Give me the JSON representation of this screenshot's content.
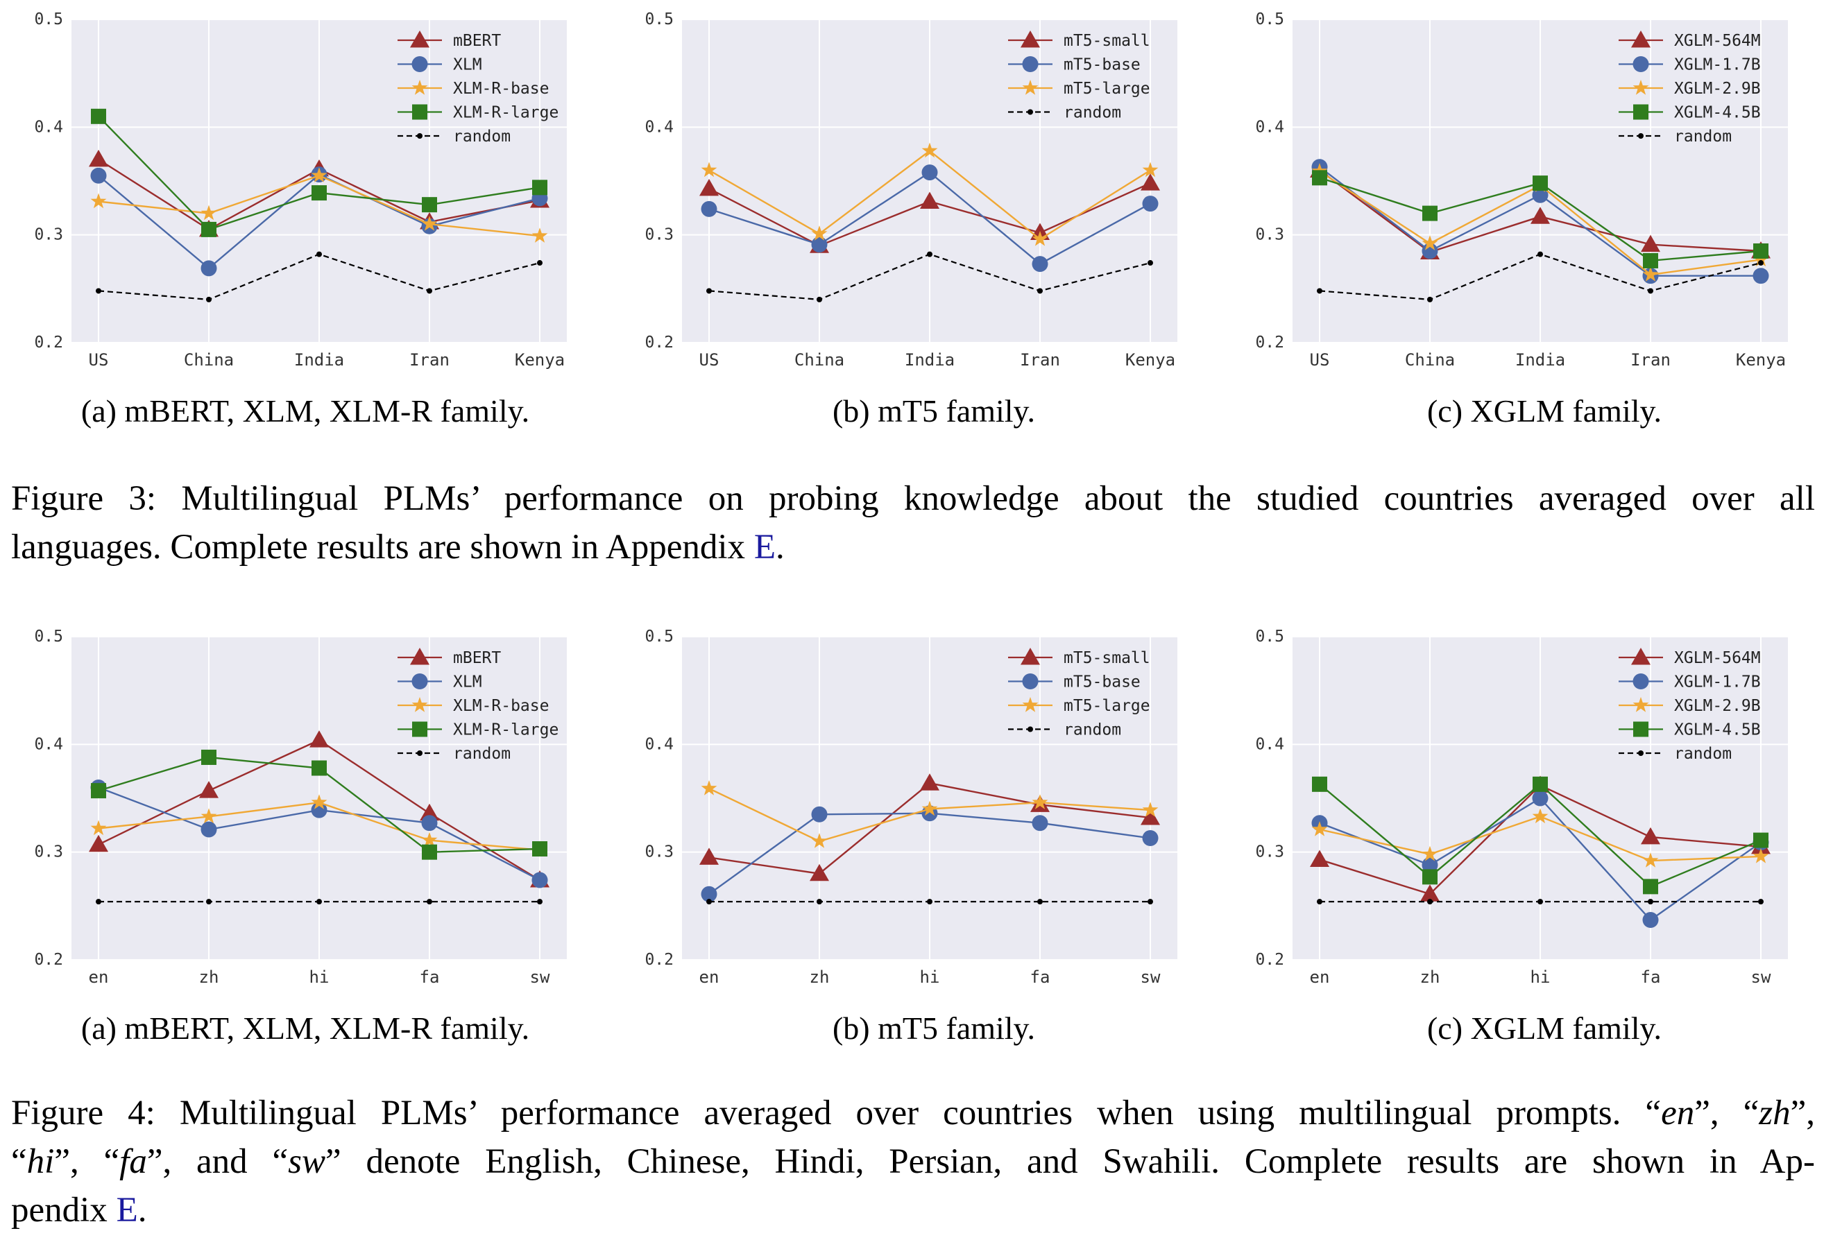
{
  "figure3": {
    "caption_parts": [
      "Figure 3: Multilingual PLMs’ performance on probing knowledge about the studied countries averaged over all",
      "languages. Complete results are shown in Appendix ",
      "E",
      "."
    ],
    "subcaptions": [
      "(a) mBERT, XLM, XLM-R family.",
      "(b) mT5 family.",
      "(c) XGLM family."
    ]
  },
  "figure4": {
    "caption_parts": [
      "Figure 4: Multilingual PLMs’ performance averaged over countries when using multilingual prompts. “",
      "en",
      "”, “",
      "zh",
      "”,",
      "“",
      "hi",
      "”, “",
      "fa",
      "”, and “",
      "sw",
      "” denote English, Chinese, Hindi, Persian, and Swahili.  Complete results are shown in Ap-",
      "pendix ",
      "E",
      "."
    ],
    "subcaptions": [
      "(a) mBERT, XLM, XLM-R family.",
      "(b) mT5 family.",
      "(c) XGLM family."
    ]
  },
  "style": {
    "panel_background": "#eaeaf2",
    "gridline": "#ffffff",
    "series_colors": [
      "#9b2d2d",
      "#4a69a8",
      "#f0a835",
      "#2f7d1e"
    ],
    "random_color": "#000000",
    "markers": [
      "triangle",
      "circle",
      "star",
      "square"
    ],
    "legend_position": "top-right"
  },
  "chart_data": [
    {
      "id": "fig3a",
      "type": "line",
      "categories": [
        "US",
        "China",
        "India",
        "Iran",
        "Kenya"
      ],
      "ylim": [
        0.2,
        0.5
      ],
      "yticks": [
        "0.2",
        "0.3",
        "0.4",
        "0.5"
      ],
      "grid": true,
      "series": [
        {
          "name": "mBERT",
          "values": [
            0.37,
            0.305,
            0.361,
            0.312,
            0.332
          ]
        },
        {
          "name": "XLM",
          "values": [
            0.355,
            0.269,
            0.356,
            0.308,
            0.334
          ]
        },
        {
          "name": "XLM-R-base",
          "values": [
            0.331,
            0.32,
            0.355,
            0.31,
            0.299
          ]
        },
        {
          "name": "XLM-R-large",
          "values": [
            0.41,
            0.305,
            0.339,
            0.328,
            0.344
          ]
        },
        {
          "name": "random",
          "values": [
            0.248,
            0.24,
            0.282,
            0.248,
            0.274
          ]
        }
      ]
    },
    {
      "id": "fig3b",
      "type": "line",
      "categories": [
        "US",
        "China",
        "India",
        "Iran",
        "Kenya"
      ],
      "ylim": [
        0.2,
        0.5
      ],
      "yticks": [
        "0.2",
        "0.3",
        "0.4",
        "0.5"
      ],
      "grid": true,
      "series": [
        {
          "name": "mT5-small",
          "values": [
            0.343,
            0.29,
            0.331,
            0.302,
            0.348
          ]
        },
        {
          "name": "mT5-base",
          "values": [
            0.324,
            0.291,
            0.358,
            0.273,
            0.329
          ]
        },
        {
          "name": "mT5-large",
          "values": [
            0.36,
            0.301,
            0.378,
            0.296,
            0.36
          ]
        },
        {
          "name": "random",
          "values": [
            0.248,
            0.24,
            0.282,
            0.248,
            0.274
          ]
        }
      ]
    },
    {
      "id": "fig3c",
      "type": "line",
      "categories": [
        "US",
        "China",
        "India",
        "Iran",
        "Kenya"
      ],
      "ylim": [
        0.2,
        0.5
      ],
      "yticks": [
        "0.2",
        "0.3",
        "0.4",
        "0.5"
      ],
      "grid": true,
      "series": [
        {
          "name": "XGLM-564M",
          "values": [
            0.36,
            0.284,
            0.317,
            0.291,
            0.285
          ]
        },
        {
          "name": "XGLM-1.7B",
          "values": [
            0.363,
            0.285,
            0.337,
            0.262,
            0.262
          ]
        },
        {
          "name": "XGLM-2.9B",
          "values": [
            0.359,
            0.292,
            0.346,
            0.263,
            0.277
          ]
        },
        {
          "name": "XGLM-4.5B",
          "values": [
            0.353,
            0.32,
            0.348,
            0.276,
            0.285
          ]
        },
        {
          "name": "random",
          "values": [
            0.248,
            0.24,
            0.282,
            0.248,
            0.274
          ]
        }
      ]
    },
    {
      "id": "fig4a",
      "type": "line",
      "categories": [
        "en",
        "zh",
        "hi",
        "fa",
        "sw"
      ],
      "ylim": [
        0.2,
        0.5
      ],
      "yticks": [
        "0.2",
        "0.3",
        "0.4",
        "0.5"
      ],
      "grid": true,
      "series": [
        {
          "name": "mBERT",
          "values": [
            0.307,
            0.357,
            0.404,
            0.336,
            0.274
          ]
        },
        {
          "name": "XLM",
          "values": [
            0.36,
            0.321,
            0.339,
            0.327,
            0.274
          ]
        },
        {
          "name": "XLM-R-base",
          "values": [
            0.322,
            0.333,
            0.346,
            0.311,
            0.302
          ]
        },
        {
          "name": "XLM-R-large",
          "values": [
            0.357,
            0.388,
            0.378,
            0.3,
            0.303
          ]
        },
        {
          "name": "random",
          "values": [
            0.254,
            0.254,
            0.254,
            0.254,
            0.254
          ]
        }
      ]
    },
    {
      "id": "fig4b",
      "type": "line",
      "categories": [
        "en",
        "zh",
        "hi",
        "fa",
        "sw"
      ],
      "ylim": [
        0.2,
        0.5
      ],
      "yticks": [
        "0.2",
        "0.3",
        "0.4",
        "0.5"
      ],
      "grid": true,
      "series": [
        {
          "name": "mT5-small",
          "values": [
            0.295,
            0.28,
            0.364,
            0.344,
            0.332
          ]
        },
        {
          "name": "mT5-base",
          "values": [
            0.261,
            0.335,
            0.336,
            0.327,
            0.313
          ]
        },
        {
          "name": "mT5-large",
          "values": [
            0.359,
            0.31,
            0.34,
            0.346,
            0.339
          ]
        },
        {
          "name": "random",
          "values": [
            0.254,
            0.254,
            0.254,
            0.254,
            0.254
          ]
        }
      ]
    },
    {
      "id": "fig4c",
      "type": "line",
      "categories": [
        "en",
        "zh",
        "hi",
        "fa",
        "sw"
      ],
      "ylim": [
        0.2,
        0.5
      ],
      "yticks": [
        "0.2",
        "0.3",
        "0.4",
        "0.5"
      ],
      "grid": true,
      "series": [
        {
          "name": "XGLM-564M",
          "values": [
            0.293,
            0.261,
            0.362,
            0.314,
            0.305
          ]
        },
        {
          "name": "XGLM-1.7B",
          "values": [
            0.327,
            0.288,
            0.35,
            0.237,
            0.309
          ]
        },
        {
          "name": "XGLM-2.9B",
          "values": [
            0.321,
            0.298,
            0.333,
            0.292,
            0.296
          ]
        },
        {
          "name": "XGLM-4.5B",
          "values": [
            0.363,
            0.277,
            0.363,
            0.268,
            0.311
          ]
        },
        {
          "name": "random",
          "values": [
            0.254,
            0.254,
            0.254,
            0.254,
            0.254
          ]
        }
      ]
    }
  ]
}
